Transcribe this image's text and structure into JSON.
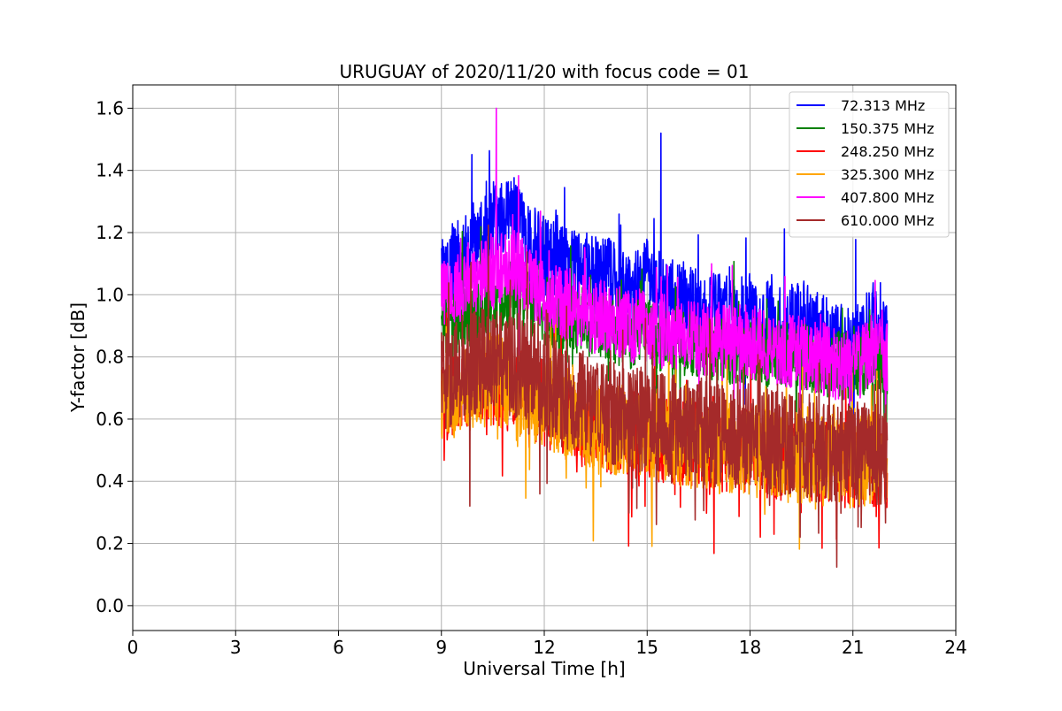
{
  "chart_data": {
    "type": "line",
    "title": "URUGUAY of 2020/11/20 with focus code = 01",
    "xlabel": "Universal Time [h]",
    "ylabel": "Y-factor [dB]",
    "xlim": [
      0,
      24
    ],
    "ylim": [
      -0.08,
      1.675
    ],
    "xticks": [
      0,
      3,
      6,
      9,
      12,
      15,
      18,
      21,
      24
    ],
    "xtick_labels": [
      "0",
      "3",
      "6",
      "9",
      "12",
      "15",
      "18",
      "21",
      "24"
    ],
    "yticks": [
      0.0,
      0.2,
      0.4,
      0.6,
      0.8,
      1.0,
      1.2,
      1.4,
      1.6
    ],
    "ytick_labels": [
      "0.0",
      "0.2",
      "0.4",
      "0.6",
      "0.8",
      "1.0",
      "1.2",
      "1.4",
      "1.6"
    ],
    "grid": true,
    "legend_position": "top-right",
    "x": [
      9.0,
      9.5,
      10.0,
      10.5,
      11.0,
      11.5,
      12.0,
      12.5,
      13.0,
      13.5,
      14.0,
      14.5,
      15.0,
      15.5,
      16.0,
      16.5,
      17.0,
      17.5,
      18.0,
      18.5,
      19.0,
      19.5,
      20.0,
      20.5,
      21.0,
      21.5,
      22.0
    ],
    "series": [
      {
        "name": "  72.313 MHz",
        "color": "#0000ff",
        "values": [
          1.1,
          1.12,
          1.15,
          1.22,
          1.25,
          1.18,
          1.12,
          1.1,
          1.08,
          1.06,
          1.05,
          1.0,
          1.05,
          1.0,
          0.98,
          0.95,
          0.95,
          0.92,
          0.95,
          0.92,
          0.9,
          0.92,
          0.88,
          0.85,
          0.82,
          0.9,
          0.85
        ],
        "peak": {
          "x": 15.4,
          "y": 1.52
        }
      },
      {
        "name": "150.375 MHz",
        "color": "#008000",
        "values": [
          0.88,
          0.92,
          0.95,
          0.98,
          1.0,
          0.98,
          0.95,
          0.93,
          0.92,
          0.9,
          0.88,
          0.87,
          0.88,
          0.86,
          0.85,
          0.84,
          0.83,
          0.82,
          0.82,
          0.81,
          0.8,
          0.8,
          0.78,
          0.78,
          0.76,
          0.8,
          0.78
        ]
      },
      {
        "name": "248.250 MHz",
        "color": "#ff0000",
        "values": [
          0.65,
          0.7,
          0.72,
          0.72,
          0.7,
          0.68,
          0.65,
          0.6,
          0.6,
          0.58,
          0.56,
          0.55,
          0.55,
          0.53,
          0.52,
          0.52,
          0.5,
          0.5,
          0.5,
          0.48,
          0.47,
          0.48,
          0.46,
          0.46,
          0.45,
          0.46,
          0.45
        ]
      },
      {
        "name": "325.300 MHz",
        "color": "#ffa500",
        "values": [
          0.66,
          0.7,
          0.72,
          0.73,
          0.71,
          0.68,
          0.66,
          0.62,
          0.6,
          0.58,
          0.57,
          0.56,
          0.56,
          0.54,
          0.53,
          0.52,
          0.51,
          0.5,
          0.5,
          0.49,
          0.48,
          0.48,
          0.47,
          0.47,
          0.46,
          0.47,
          0.46
        ]
      },
      {
        "name": "407.800 MHz",
        "color": "#ff00ff",
        "values": [
          1.0,
          1.02,
          1.05,
          1.08,
          1.1,
          1.05,
          1.0,
          0.98,
          0.95,
          0.93,
          0.92,
          0.9,
          0.9,
          0.88,
          0.87,
          0.86,
          0.86,
          0.85,
          0.85,
          0.83,
          0.82,
          0.82,
          0.8,
          0.78,
          0.76,
          0.82,
          0.8
        ],
        "peak": {
          "x": 10.6,
          "y": 1.6
        }
      },
      {
        "name": "610.000 MHz",
        "color": "#a52a2a",
        "values": [
          0.72,
          0.76,
          0.78,
          0.8,
          0.78,
          0.76,
          0.72,
          0.68,
          0.66,
          0.64,
          0.62,
          0.6,
          0.6,
          0.58,
          0.57,
          0.56,
          0.55,
          0.55,
          0.55,
          0.53,
          0.52,
          0.52,
          0.5,
          0.5,
          0.48,
          0.5,
          0.48
        ]
      }
    ]
  }
}
